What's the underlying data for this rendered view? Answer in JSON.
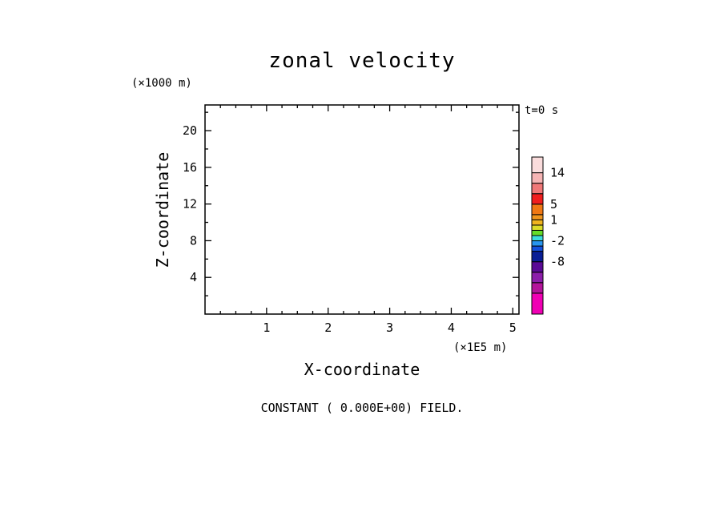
{
  "chart_data": {
    "type": "heatmap",
    "title": "zonal velocity",
    "xlabel": "X-coordinate",
    "ylabel": "Z-coordinate",
    "x_unit": "(×1E5 m)",
    "y_unit": "(×1000 m)",
    "time_label": "t=0 s",
    "footer": "CONSTANT ( 0.000E+00) FIELD.",
    "xlim": [
      0,
      5.1
    ],
    "ylim": [
      0,
      22.8
    ],
    "x_ticks": [
      1,
      2,
      3,
      4,
      5
    ],
    "y_ticks": [
      4,
      8,
      12,
      16,
      20
    ],
    "x_ticks_minor": [
      0.25,
      0.5,
      0.75,
      1.25,
      1.5,
      1.75,
      2.25,
      2.5,
      2.75,
      3.25,
      3.5,
      3.75,
      4.25,
      4.5,
      4.75,
      5.25
    ],
    "y_ticks_minor": [
      2,
      6,
      10,
      14,
      18,
      22
    ],
    "field_value": 0,
    "colorbar": {
      "segments": [
        {
          "color": "#f000b4"
        },
        {
          "color": "#b4149b"
        },
        {
          "color": "#8c1eaa"
        },
        {
          "color": "#5a0a96"
        },
        {
          "color": "#0a1e96"
        },
        {
          "color": "#1450dc"
        },
        {
          "color": "#2896f0"
        },
        {
          "color": "#3cdcdc"
        },
        {
          "color": "#64dc28"
        },
        {
          "color": "#dcdc28"
        },
        {
          "color": "#f0b41e"
        },
        {
          "color": "#f0961e"
        },
        {
          "color": "#f07814"
        },
        {
          "color": "#f01e1e"
        },
        {
          "color": "#f07878"
        },
        {
          "color": "#f5b4b4"
        },
        {
          "color": "#fadcdc"
        }
      ],
      "labels": [
        {
          "text": "-8",
          "after_segment": 3
        },
        {
          "text": "-2",
          "after_segment": 6
        },
        {
          "text": "1",
          "after_segment": 10
        },
        {
          "text": "5",
          "after_segment": 12
        },
        {
          "text": "14",
          "after_segment": 15
        }
      ]
    }
  }
}
